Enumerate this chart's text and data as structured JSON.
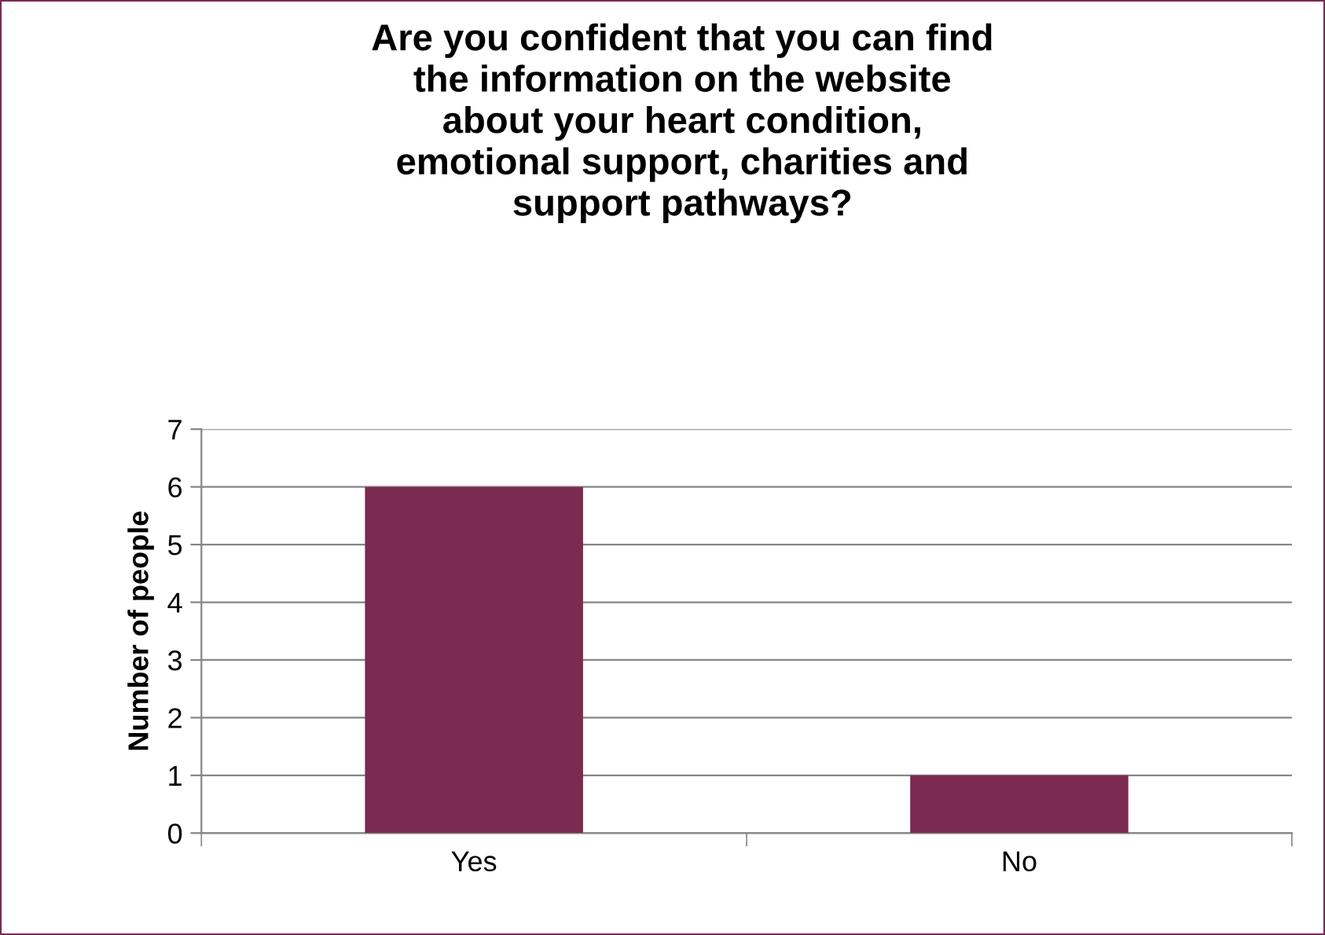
{
  "chart_data": {
    "type": "bar",
    "title": "Are you confident that you can find\nthe information on the website\nabout your heart condition,\nemotional support, charities and\nsupport pathways?",
    "ylabel": "Number of people",
    "categories": [
      "Yes",
      "No"
    ],
    "values": [
      6,
      1
    ],
    "color": "#7b2a52",
    "ylim": [
      0,
      7
    ],
    "yticks": [
      0,
      1,
      2,
      3,
      4,
      5,
      6,
      7
    ],
    "grid": "y",
    "legend": false
  }
}
